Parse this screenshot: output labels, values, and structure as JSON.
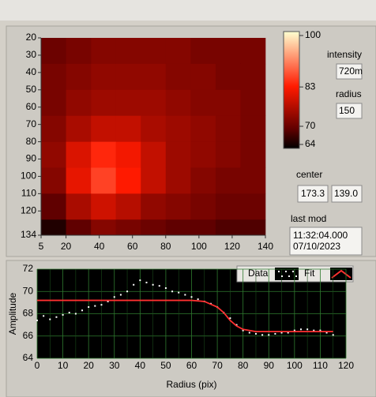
{
  "panel": {
    "intensity_label": "intensity",
    "intensity_value": "720m",
    "radius_label": "radius",
    "radius_value": "150",
    "center_label": "center",
    "center_x": "173.3",
    "center_y": "139.0",
    "last_mod_label": "last mod",
    "last_mod_time": "11:32:04.000",
    "last_mod_date": "07/10/2023"
  },
  "chart_data": [
    {
      "type": "heatmap",
      "x_edges": [
        5,
        20,
        35,
        50,
        65,
        80,
        95,
        110,
        125,
        140
      ],
      "y_edges": [
        20,
        35,
        50,
        65,
        80,
        95,
        110,
        125,
        134
      ],
      "z": [
        [
          71,
          72,
          73,
          73,
          73,
          73,
          72,
          72,
          72
        ],
        [
          72,
          73,
          74,
          74,
          74,
          73,
          73,
          72,
          72
        ],
        [
          72,
          74,
          75,
          75,
          75,
          74,
          73,
          73,
          72
        ],
        [
          73,
          76,
          78,
          78,
          76,
          75,
          74,
          73,
          72
        ],
        [
          74,
          80,
          84,
          82,
          78,
          75,
          74,
          73,
          72
        ],
        [
          73,
          81,
          86,
          83,
          78,
          75,
          73,
          72,
          72
        ],
        [
          70,
          76,
          79,
          77,
          74,
          73,
          72,
          71,
          71
        ],
        [
          66,
          70,
          73,
          72,
          71,
          70,
          70,
          69,
          69
        ]
      ],
      "xlim": [
        5,
        140
      ],
      "xticks": [
        5,
        20,
        40,
        60,
        80,
        100,
        120,
        140
      ],
      "ylim": [
        20,
        134
      ],
      "yticks": [
        20,
        30,
        40,
        50,
        60,
        70,
        80,
        90,
        100,
        110,
        120,
        134
      ],
      "colormap": [
        {
          "value": 64,
          "color": "#000000"
        },
        {
          "value": 70,
          "color": "#600000"
        },
        {
          "value": 83,
          "color": "#ff1a00"
        },
        {
          "value": 100,
          "color": "#ffffd0"
        }
      ]
    },
    {
      "type": "line",
      "xlabel": "Radius (pix)",
      "ylabel": "Amplitude",
      "xlim": [
        0,
        120
      ],
      "xticks": [
        0,
        10,
        20,
        30,
        40,
        50,
        60,
        70,
        80,
        90,
        100,
        110,
        120
      ],
      "ylim": [
        64,
        72
      ],
      "yticks": [
        64,
        66,
        68,
        70,
        72
      ],
      "grid": true,
      "series": [
        {
          "name": "Data",
          "color": "#ffffff",
          "mode": "markers",
          "x": [
            0,
            2.5,
            5,
            7.5,
            10,
            12.5,
            15,
            17.5,
            20,
            22.5,
            25,
            27.5,
            30,
            32.5,
            35,
            37.5,
            40,
            42.5,
            45,
            47.5,
            50,
            52.5,
            55,
            57.5,
            60,
            62.5,
            65,
            67.5,
            70,
            72.5,
            75,
            77.5,
            80,
            82.5,
            85,
            87.5,
            90,
            92.5,
            95,
            97.5,
            100,
            102.5,
            105,
            107.5,
            110,
            112.5,
            115
          ],
          "values": [
            67.4,
            67.8,
            67.5,
            67.7,
            67.9,
            68.1,
            68.0,
            68.3,
            68.6,
            68.7,
            68.8,
            69.1,
            69.5,
            69.7,
            70.0,
            70.6,
            71.0,
            70.8,
            70.6,
            70.5,
            70.3,
            70.0,
            69.9,
            69.7,
            69.5,
            69.3,
            69.1,
            68.9,
            68.6,
            68.1,
            67.6,
            67.0,
            66.5,
            66.3,
            66.2,
            66.1,
            66.1,
            66.2,
            66.3,
            66.3,
            66.5,
            66.6,
            66.6,
            66.5,
            66.5,
            66.3,
            66.1
          ]
        },
        {
          "name": "Fit",
          "color": "#ff3030",
          "mode": "line",
          "x": [
            0,
            60,
            65,
            70,
            72.5,
            75,
            77.5,
            80,
            85,
            115
          ],
          "values": [
            69.2,
            69.2,
            69.1,
            68.6,
            68.1,
            67.4,
            66.9,
            66.6,
            66.4,
            66.4
          ]
        }
      ]
    }
  ]
}
